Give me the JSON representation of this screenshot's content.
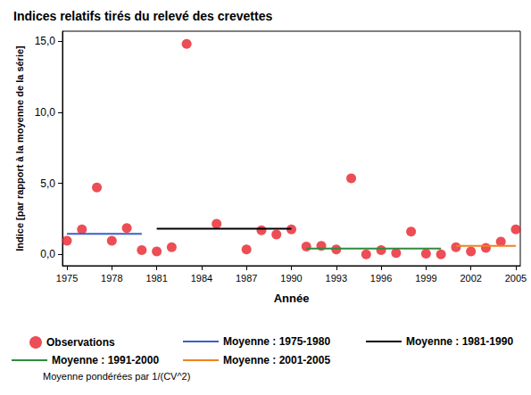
{
  "chart_data": {
    "type": "scatter",
    "title": "Indices relatifs tirés du relevé des crevettes",
    "x_label": "Année",
    "y_label": "Indice [par rapport à la moyenne de la série]",
    "annotations": [
      "Moyenne pondérées par 1/(CV^2)"
    ],
    "xlim": [
      1974.7,
      2005.3
    ],
    "xticks": [
      1975,
      1978,
      1981,
      1984,
      1987,
      1990,
      1993,
      1996,
      1999,
      2002,
      2005
    ],
    "ylim": [
      -0.8,
      15.7
    ],
    "yticks": [
      {
        "value": 0,
        "label": "0,0"
      },
      {
        "value": 5,
        "label": "5,0"
      },
      {
        "value": 10,
        "label": "10,0"
      },
      {
        "value": 15,
        "label": "15,0"
      }
    ],
    "grid": false,
    "legend": "bottom",
    "series": [
      {
        "name": "Observations",
        "type": "scatter",
        "marker": "circle",
        "color": "#e8202a",
        "x": [
          1975,
          1976,
          1977,
          1978,
          1979,
          1980,
          1981,
          1982,
          1983,
          1985,
          1987,
          1988,
          1989,
          1990,
          1991,
          1992,
          1993,
          1994,
          1995,
          1996,
          1997,
          1998,
          1999,
          2000,
          2001,
          2002,
          2003,
          2004,
          2005
        ],
        "values": [
          0.95,
          1.75,
          4.7,
          0.95,
          1.85,
          0.3,
          0.2,
          0.5,
          14.8,
          2.15,
          0.35,
          1.7,
          1.4,
          1.75,
          0.55,
          0.6,
          0.35,
          5.35,
          0.0,
          0.3,
          0.1,
          1.6,
          0.05,
          0.0,
          0.5,
          0.2,
          0.45,
          0.9,
          1.75
        ]
      },
      {
        "name": "Moyenne : 1975-1980",
        "type": "line",
        "line_style": "solid",
        "color": "#3a5fcd",
        "x": [
          1975,
          1980
        ],
        "values": [
          1.45,
          1.45
        ]
      },
      {
        "name": "Moyenne : 1981-1990",
        "type": "line",
        "line_style": "solid",
        "color": "#000000",
        "x": [
          1981,
          1990
        ],
        "values": [
          1.8,
          1.8
        ]
      },
      {
        "name": "Moyenne : 1991-2000",
        "type": "line",
        "line_style": "solid",
        "color": "#2e8b3c",
        "x": [
          1991,
          2000
        ],
        "values": [
          0.4,
          0.4
        ]
      },
      {
        "name": "Moyenne : 2001-2005",
        "type": "line",
        "line_style": "solid",
        "color": "#f0821e",
        "x": [
          2001,
          2005
        ],
        "values": [
          0.6,
          0.6
        ]
      }
    ]
  }
}
